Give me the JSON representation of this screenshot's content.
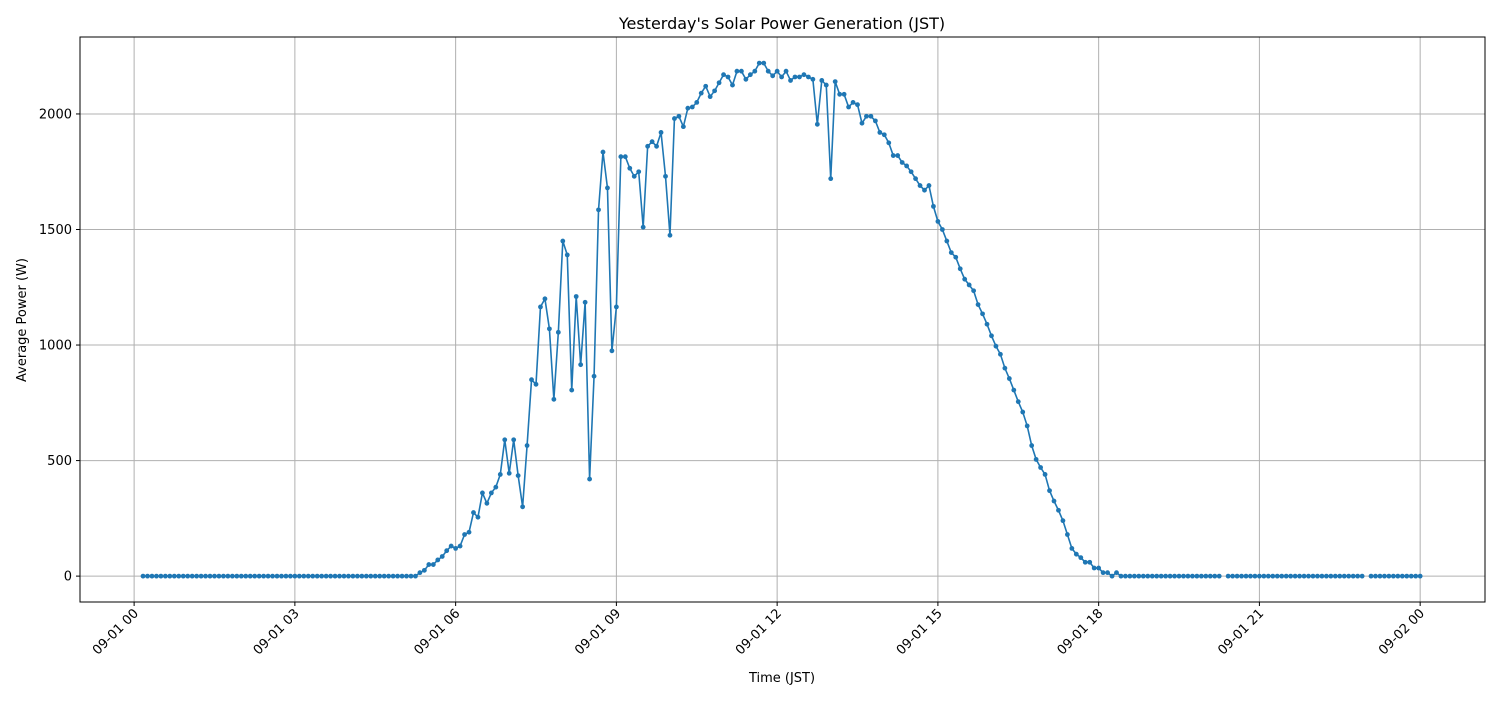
{
  "chart_data": {
    "type": "line",
    "title": "Yesterday's Solar Power Generation (JST)",
    "xlabel": "Time (JST)",
    "ylabel": "Average Power (W)",
    "x_start": "09-01 00:10",
    "interval_minutes": 5,
    "xlim_hours": [
      -1.01,
      25.21
    ],
    "ylim": [
      -112,
      2333
    ],
    "grid": true,
    "color": "#1f77b4",
    "x_ticks": [
      {
        "hour": 0,
        "label": "09-01 00"
      },
      {
        "hour": 3,
        "label": "09-01 03"
      },
      {
        "hour": 6,
        "label": "09-01 06"
      },
      {
        "hour": 9,
        "label": "09-01 09"
      },
      {
        "hour": 12,
        "label": "09-01 12"
      },
      {
        "hour": 15,
        "label": "09-01 15"
      },
      {
        "hour": 18,
        "label": "09-01 18"
      },
      {
        "hour": 21,
        "label": "09-01 21"
      },
      {
        "hour": 24,
        "label": "09-02 00"
      }
    ],
    "y_ticks": [
      {
        "value": 0,
        "label": "0"
      },
      {
        "value": 500,
        "label": "500"
      },
      {
        "value": 1000,
        "label": "1000"
      },
      {
        "value": 1500,
        "label": "1500"
      },
      {
        "value": 2000,
        "label": "2000"
      }
    ],
    "values": [
      0,
      0,
      0,
      0,
      0,
      0,
      0,
      0,
      0,
      0,
      0,
      0,
      0,
      0,
      0,
      0,
      0,
      0,
      0,
      0,
      0,
      0,
      0,
      0,
      0,
      0,
      0,
      0,
      0,
      0,
      0,
      0,
      0,
      0,
      0,
      0,
      0,
      0,
      0,
      0,
      0,
      0,
      0,
      0,
      0,
      0,
      0,
      0,
      0,
      0,
      0,
      0,
      0,
      0,
      0,
      0,
      0,
      0,
      0,
      0,
      0,
      0,
      15,
      25,
      50,
      50,
      70,
      85,
      110,
      130,
      120,
      130,
      180,
      190,
      275,
      255,
      360,
      315,
      360,
      385,
      440,
      590,
      445,
      590,
      435,
      300,
      565,
      850,
      830,
      1165,
      1200,
      1070,
      765,
      1055,
      1450,
      1390,
      805,
      1210,
      915,
      1185,
      420,
      865,
      1585,
      1835,
      1680,
      975,
      1165,
      1815,
      1815,
      1765,
      1730,
      1750,
      1510,
      1860,
      1880,
      1860,
      1920,
      1730,
      1475,
      1980,
      1990,
      1945,
      2025,
      2030,
      2050,
      2090,
      2120,
      2075,
      2100,
      2135,
      2170,
      2160,
      2125,
      2185,
      2185,
      2150,
      2170,
      2185,
      2220,
      2220,
      2185,
      2165,
      2185,
      2160,
      2185,
      2145,
      2160,
      2160,
      2170,
      2160,
      2150,
      1955,
      2145,
      2125,
      1720,
      2140,
      2085,
      2085,
      2030,
      2050,
      2040,
      1960,
      1990,
      1990,
      1970,
      1920,
      1910,
      1875,
      1820,
      1820,
      1790,
      1775,
      1750,
      1720,
      1690,
      1670,
      1690,
      1600,
      1535,
      1500,
      1450,
      1400,
      1380,
      1330,
      1285,
      1260,
      1235,
      1175,
      1135,
      1090,
      1040,
      995,
      960,
      900,
      855,
      805,
      755,
      710,
      650,
      565,
      505,
      470,
      440,
      370,
      325,
      285,
      240,
      180,
      120,
      95,
      80,
      60,
      60,
      35,
      35,
      15,
      15,
      0,
      15,
      0,
      0,
      0,
      0,
      0,
      0,
      0,
      0,
      0,
      0,
      0,
      0,
      0,
      0,
      0,
      0,
      0,
      0,
      0,
      0,
      0,
      0,
      0,
      null,
      0,
      0,
      0,
      0,
      0,
      0,
      0,
      0,
      0,
      0,
      0,
      0,
      0,
      0,
      0,
      0,
      0,
      0,
      0,
      0,
      0,
      0,
      0,
      0,
      0,
      0,
      0,
      0,
      0,
      0,
      0,
      null,
      0,
      0,
      0,
      0,
      0,
      0,
      0,
      0,
      0,
      0,
      0,
      0
    ]
  }
}
